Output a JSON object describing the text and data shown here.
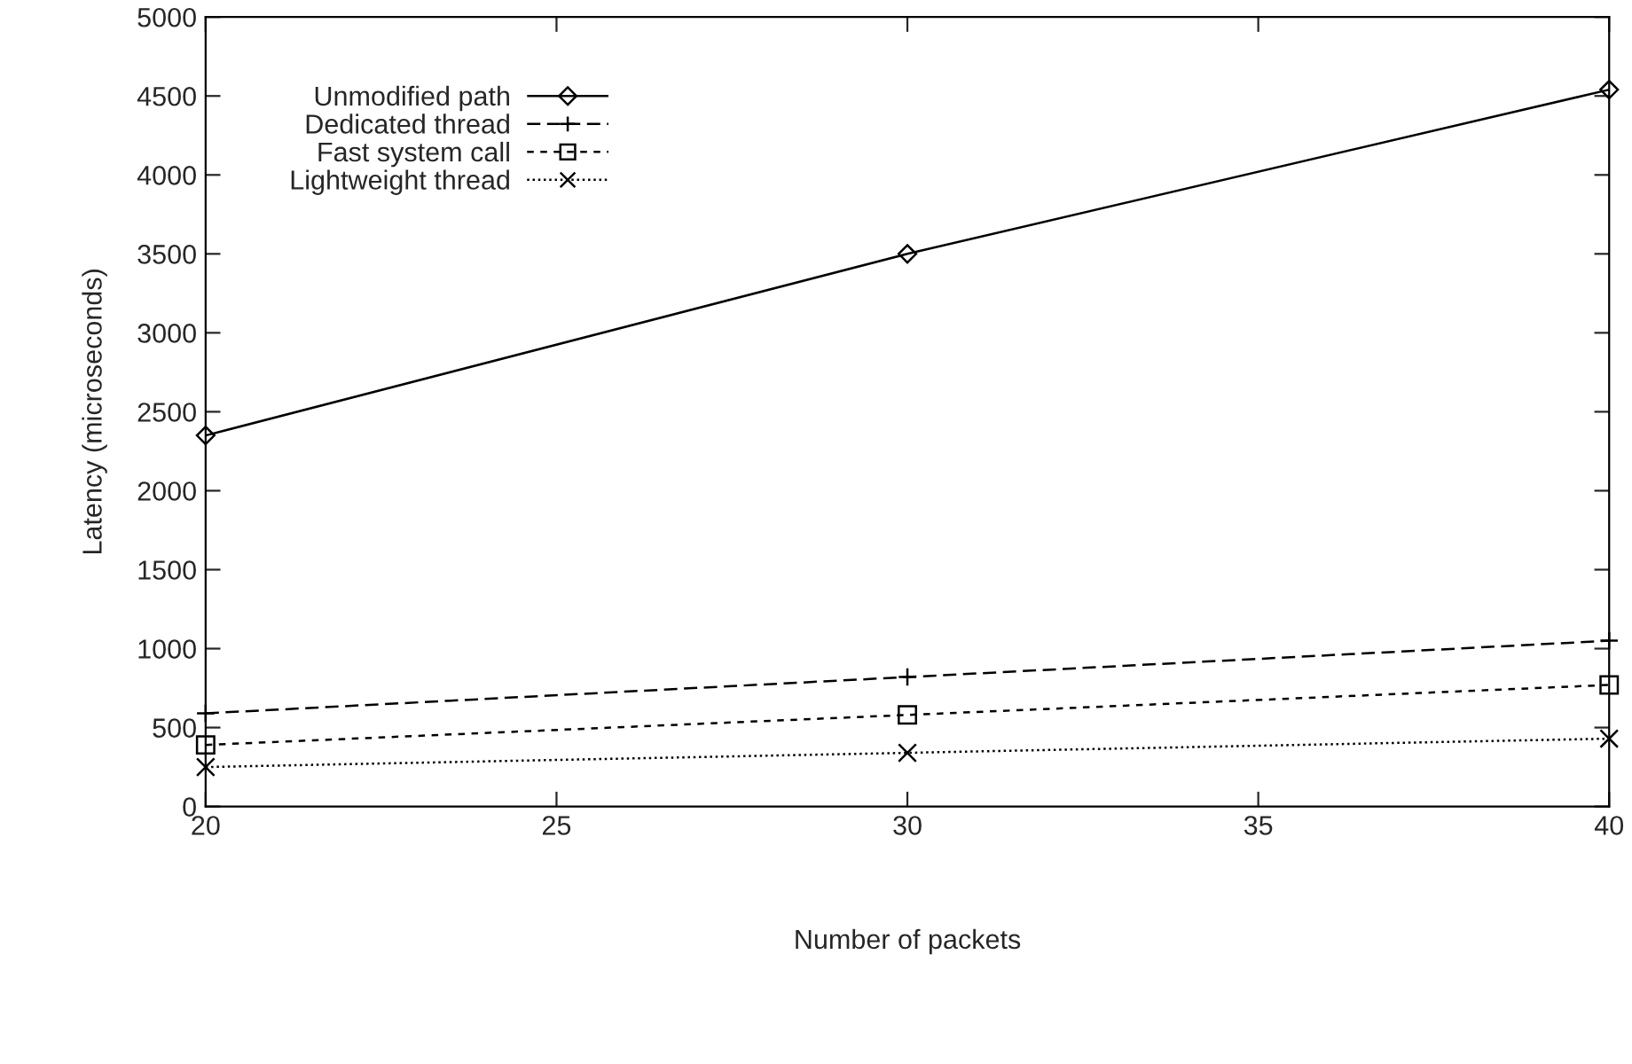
{
  "chart_data": {
    "type": "line",
    "xlabel": "Number of packets",
    "ylabel": "Latency (microseconds)",
    "x": [
      20,
      30,
      40
    ],
    "series": [
      {
        "name": "Unmodified path",
        "color": "#000000",
        "values": [
          2350,
          3500,
          4540
        ],
        "marker": "diamond",
        "line_style": "solid"
      },
      {
        "name": "Dedicated thread",
        "color": "#000000",
        "values": [
          590,
          820,
          1050
        ],
        "marker": "plus",
        "line_style": "dashed"
      },
      {
        "name": "Fast system call",
        "color": "#000000",
        "values": [
          390,
          580,
          770
        ],
        "marker": "square",
        "line_style": "dashdot"
      },
      {
        "name": "Lightweight thread",
        "color": "#000000",
        "values": [
          250,
          340,
          430
        ],
        "marker": "cross",
        "line_style": "dotted"
      }
    ],
    "xlim": [
      20,
      40
    ],
    "xticks": [
      20,
      25,
      30,
      35,
      40
    ],
    "ylim": [
      0,
      5000
    ],
    "yticks": [
      0,
      500,
      1000,
      1500,
      2000,
      2500,
      3000,
      3500,
      4000,
      4500,
      5000
    ],
    "grid": false,
    "legend": "top left"
  }
}
